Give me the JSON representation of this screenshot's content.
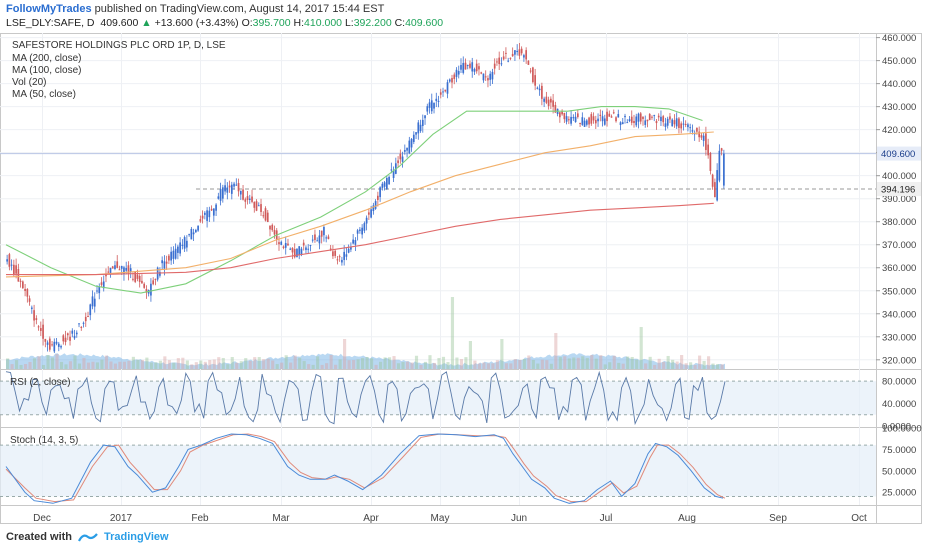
{
  "header": {
    "author": "FollowMyTrades",
    "published": "published on TradingView.com, August 14, 2017 15:44 EST",
    "symbol": "LSE_DLY:SAFE, D",
    "last": "409.600",
    "change": "+13.600 (+3.43%)",
    "open_label": "O:",
    "open": "395.700",
    "high_label": "H:",
    "high": "410.000",
    "low_label": "L:",
    "low": "392.200",
    "close_label": "C:",
    "close": "409.600"
  },
  "legend": {
    "title": "SAFESTORE HOLDINGS PLC ORD 1P, D, LSE",
    "ma200": "MA (200, close)",
    "ma100": "MA (100, close)",
    "vol": "Vol (20)",
    "ma50": "MA (50, close)"
  },
  "rsi_label": "RSI (2, close)",
  "stoch_label": "Stoch (14, 3, 5)",
  "footer": {
    "created": "Created with",
    "brand": "TradingView"
  },
  "colors": {
    "up": "#3a6fd0",
    "down": "#d05a5a",
    "ma50": "#7ed07a",
    "ma100": "#f2b06a",
    "ma200": "#e06a6a",
    "vol_area": "#7fb8e8",
    "rsi_line": "#5a7aa8",
    "stoch_k": "#4a8ad8",
    "stoch_d": "#e08a7a"
  },
  "chart_data": {
    "type": "candlestick",
    "title": "SAFESTORE HOLDINGS PLC ORD 1P, D, LSE",
    "x_labels": [
      "Dec",
      "2017",
      "Feb",
      "Mar",
      "Apr",
      "May",
      "Jun",
      "Jul",
      "Aug",
      "Sep",
      "Oct"
    ],
    "price_ticks": [
      "460.000",
      "450.000",
      "440.000",
      "430.000",
      "420.000",
      "410.000",
      "400.000",
      "390.000",
      "380.000",
      "370.000",
      "360.000",
      "350.000",
      "340.000",
      "330.000",
      "320.000"
    ],
    "ylim": [
      316,
      462
    ],
    "last_price_label": "409.600",
    "support_label": "394.196",
    "support_level": 394.196,
    "price_path": [
      [
        0,
        365
      ],
      [
        8,
        352
      ],
      [
        14,
        336
      ],
      [
        20,
        326
      ],
      [
        28,
        329
      ],
      [
        35,
        336
      ],
      [
        42,
        353
      ],
      [
        50,
        361
      ],
      [
        56,
        358
      ],
      [
        63,
        349
      ],
      [
        70,
        362
      ],
      [
        77,
        368
      ],
      [
        85,
        378
      ],
      [
        92,
        385
      ],
      [
        97,
        395
      ],
      [
        103,
        395
      ],
      [
        108,
        389
      ],
      [
        114,
        385
      ],
      [
        122,
        372
      ],
      [
        128,
        366
      ],
      [
        135,
        370
      ],
      [
        142,
        376
      ],
      [
        146,
        366
      ],
      [
        150,
        364
      ],
      [
        155,
        372
      ],
      [
        162,
        383
      ],
      [
        168,
        395
      ],
      [
        175,
        407
      ],
      [
        180,
        414
      ],
      [
        187,
        428
      ],
      [
        195,
        436
      ],
      [
        202,
        447
      ],
      [
        208,
        448
      ],
      [
        214,
        442
      ],
      [
        220,
        450
      ],
      [
        225,
        452
      ],
      [
        230,
        454
      ],
      [
        235,
        442
      ],
      [
        240,
        433
      ],
      [
        248,
        426
      ],
      [
        255,
        424
      ],
      [
        262,
        424
      ],
      [
        270,
        426
      ],
      [
        276,
        424
      ],
      [
        282,
        425
      ],
      [
        289,
        425
      ],
      [
        294,
        424
      ],
      [
        299,
        423
      ],
      [
        303,
        421
      ],
      [
        307,
        419
      ],
      [
        310,
        418
      ],
      [
        312,
        413
      ],
      [
        314,
        402
      ],
      [
        316,
        392
      ],
      [
        318,
        409.6
      ]
    ],
    "ma50": [
      [
        0,
        370
      ],
      [
        20,
        360
      ],
      [
        40,
        352
      ],
      [
        60,
        349
      ],
      [
        80,
        353
      ],
      [
        100,
        363
      ],
      [
        120,
        374
      ],
      [
        140,
        382
      ],
      [
        160,
        393
      ],
      [
        175,
        404
      ],
      [
        190,
        418
      ],
      [
        205,
        428
      ],
      [
        220,
        428
      ],
      [
        235,
        428
      ],
      [
        250,
        428
      ],
      [
        265,
        430
      ],
      [
        280,
        430
      ],
      [
        295,
        429
      ],
      [
        310,
        424
      ]
    ],
    "ma100": [
      [
        0,
        356
      ],
      [
        40,
        357
      ],
      [
        80,
        360
      ],
      [
        100,
        364
      ],
      [
        120,
        372
      ],
      [
        140,
        378
      ],
      [
        160,
        385
      ],
      [
        180,
        393
      ],
      [
        200,
        400
      ],
      [
        220,
        405
      ],
      [
        240,
        410
      ],
      [
        260,
        413
      ],
      [
        280,
        417
      ],
      [
        300,
        418
      ],
      [
        315,
        419
      ]
    ],
    "ma200": [
      [
        0,
        357
      ],
      [
        40,
        357
      ],
      [
        80,
        358
      ],
      [
        100,
        360
      ],
      [
        120,
        364
      ],
      [
        140,
        367
      ],
      [
        160,
        370
      ],
      [
        180,
        374
      ],
      [
        200,
        378
      ],
      [
        220,
        381
      ],
      [
        240,
        383
      ],
      [
        260,
        385
      ],
      [
        280,
        386
      ],
      [
        300,
        387
      ],
      [
        315,
        388
      ]
    ],
    "rsi_ticks": [
      "80.0000",
      "40.0000",
      "0.0000"
    ],
    "rsi_ylim": [
      -2,
      100
    ],
    "stoch_ticks": [
      "100.0000",
      "75.0000",
      "50.0000",
      "25.0000"
    ],
    "stoch_ylim": [
      10,
      100
    ],
    "stoch_k": [
      [
        0,
        55
      ],
      [
        10,
        25
      ],
      [
        15,
        15
      ],
      [
        25,
        12
      ],
      [
        35,
        18
      ],
      [
        45,
        60
      ],
      [
        52,
        80
      ],
      [
        58,
        78
      ],
      [
        65,
        55
      ],
      [
        70,
        45
      ],
      [
        78,
        25
      ],
      [
        85,
        30
      ],
      [
        92,
        55
      ],
      [
        97,
        75
      ],
      [
        104,
        80
      ],
      [
        112,
        88
      ],
      [
        120,
        93
      ],
      [
        128,
        92
      ],
      [
        135,
        88
      ],
      [
        142,
        82
      ],
      [
        150,
        55
      ],
      [
        156,
        45
      ],
      [
        162,
        40
      ],
      [
        170,
        40
      ],
      [
        175,
        45
      ],
      [
        182,
        38
      ],
      [
        190,
        28
      ],
      [
        200,
        45
      ],
      [
        210,
        70
      ],
      [
        220,
        91
      ],
      [
        230,
        93
      ],
      [
        240,
        92
      ],
      [
        250,
        90
      ],
      [
        260,
        92
      ],
      [
        265,
        88
      ],
      [
        270,
        70
      ],
      [
        275,
        55
      ],
      [
        280,
        40
      ],
      [
        287,
        30
      ],
      [
        292,
        18
      ],
      [
        300,
        12
      ],
      [
        308,
        15
      ],
      [
        315,
        28
      ],
      [
        322,
        38
      ],
      [
        328,
        20
      ],
      [
        335,
        35
      ],
      [
        342,
        70
      ],
      [
        346,
        82
      ],
      [
        352,
        78
      ],
      [
        358,
        68
      ],
      [
        365,
        50
      ],
      [
        372,
        30
      ],
      [
        378,
        20
      ],
      [
        382,
        18
      ]
    ],
    "stoch_d": [
      [
        0,
        52
      ],
      [
        10,
        30
      ],
      [
        16,
        18
      ],
      [
        26,
        14
      ],
      [
        36,
        16
      ],
      [
        46,
        55
      ],
      [
        54,
        78
      ],
      [
        60,
        80
      ],
      [
        66,
        60
      ],
      [
        71,
        48
      ],
      [
        79,
        28
      ],
      [
        86,
        28
      ],
      [
        93,
        50
      ],
      [
        98,
        72
      ],
      [
        105,
        80
      ],
      [
        113,
        86
      ],
      [
        121,
        92
      ],
      [
        129,
        93
      ],
      [
        136,
        90
      ],
      [
        143,
        84
      ],
      [
        151,
        60
      ],
      [
        157,
        48
      ],
      [
        163,
        42
      ],
      [
        171,
        40
      ],
      [
        176,
        43
      ],
      [
        183,
        40
      ],
      [
        191,
        30
      ],
      [
        201,
        42
      ],
      [
        211,
        65
      ],
      [
        221,
        89
      ],
      [
        231,
        93
      ],
      [
        241,
        92
      ],
      [
        251,
        91
      ],
      [
        261,
        91
      ],
      [
        266,
        89
      ],
      [
        271,
        74
      ],
      [
        276,
        58
      ],
      [
        281,
        44
      ],
      [
        288,
        32
      ],
      [
        293,
        21
      ],
      [
        301,
        14
      ],
      [
        309,
        14
      ],
      [
        316,
        25
      ],
      [
        323,
        36
      ],
      [
        329,
        24
      ],
      [
        336,
        32
      ],
      [
        343,
        65
      ],
      [
        347,
        80
      ],
      [
        353,
        80
      ],
      [
        359,
        70
      ],
      [
        366,
        54
      ],
      [
        373,
        34
      ],
      [
        379,
        22
      ],
      [
        383,
        18
      ]
    ]
  }
}
